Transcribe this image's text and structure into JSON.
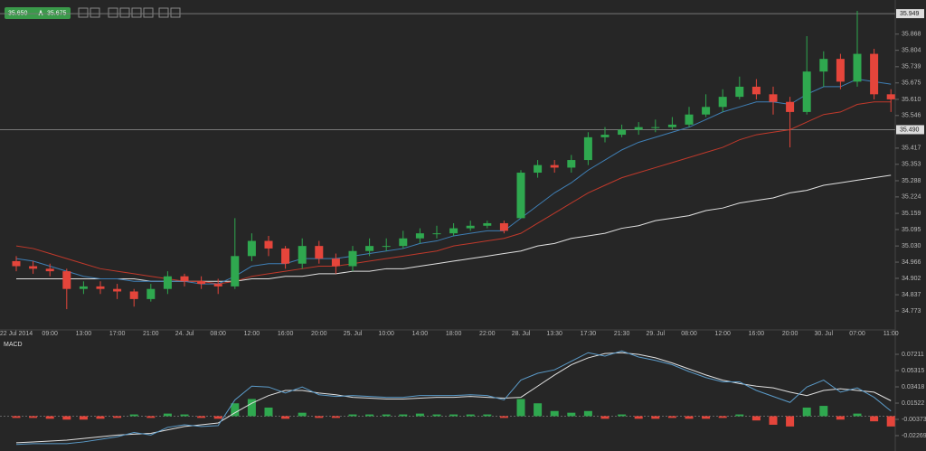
{
  "quote": {
    "bid": "35.650",
    "ask": "35.675"
  },
  "chart_data": [
    {
      "type": "candlestick",
      "categories": [
        "22 Jul 2014",
        null,
        "09:00",
        null,
        "13:00",
        null,
        "17:00",
        null,
        "21:00",
        null,
        "24. Jul",
        null,
        "08:00",
        null,
        "12:00",
        null,
        "16:00",
        null,
        "20:00",
        null,
        "25. Jul",
        null,
        "10:00",
        null,
        "14:00",
        null,
        "18:00",
        null,
        "22:00",
        null,
        "28. Jul",
        null,
        "13:30",
        null,
        "17:30",
        null,
        "21:30",
        null,
        "29. Jul",
        null,
        "08:00",
        null,
        "12:00",
        null,
        "16:00",
        null,
        "20:00",
        null,
        "30. Jul",
        null,
        "07:00",
        null,
        "11:00"
      ],
      "open": [
        34.97,
        34.95,
        34.94,
        34.93,
        34.86,
        34.87,
        34.86,
        34.85,
        34.82,
        34.86,
        34.91,
        34.89,
        34.88,
        34.87,
        34.99,
        35.05,
        35.02,
        34.96,
        35.03,
        34.98,
        34.95,
        35.01,
        35.03,
        35.03,
        35.06,
        35.08,
        35.08,
        35.1,
        35.11,
        35.12,
        35.14,
        35.32,
        35.35,
        35.34,
        35.37,
        35.46,
        35.47,
        35.49,
        35.5,
        35.5,
        35.51,
        35.55,
        35.58,
        35.62,
        35.66,
        35.63,
        35.6,
        35.56,
        35.72,
        35.77,
        35.68,
        35.79,
        35.63
      ],
      "high": [
        34.99,
        34.97,
        34.96,
        34.94,
        34.89,
        34.89,
        34.88,
        34.86,
        34.88,
        34.93,
        34.92,
        34.91,
        34.9,
        35.14,
        35.08,
        35.07,
        35.03,
        35.06,
        35.05,
        35.0,
        35.03,
        35.06,
        35.06,
        35.09,
        35.1,
        35.11,
        35.12,
        35.13,
        35.13,
        35.13,
        35.33,
        35.37,
        35.37,
        35.39,
        35.48,
        35.5,
        35.51,
        35.52,
        35.53,
        35.54,
        35.58,
        35.63,
        35.65,
        35.7,
        35.69,
        35.66,
        35.62,
        35.86,
        35.8,
        35.79,
        35.96,
        35.81,
        35.65
      ],
      "low": [
        34.93,
        34.92,
        34.91,
        34.78,
        34.84,
        34.84,
        34.82,
        34.79,
        34.81,
        34.84,
        34.87,
        34.86,
        34.84,
        34.86,
        34.97,
        34.99,
        34.94,
        34.94,
        34.96,
        34.92,
        34.93,
        34.99,
        35.01,
        35.02,
        35.04,
        35.06,
        35.07,
        35.09,
        35.1,
        35.08,
        35.14,
        35.3,
        35.32,
        35.32,
        35.35,
        35.44,
        35.46,
        35.47,
        35.48,
        35.49,
        35.5,
        35.54,
        35.56,
        35.61,
        35.61,
        35.55,
        35.42,
        35.55,
        35.66,
        35.65,
        35.66,
        35.61,
        35.56
      ],
      "close": [
        34.95,
        34.94,
        34.93,
        34.86,
        34.87,
        34.86,
        34.85,
        34.82,
        34.86,
        34.91,
        34.89,
        34.88,
        34.87,
        34.99,
        35.05,
        35.02,
        34.96,
        35.03,
        34.98,
        34.95,
        35.01,
        35.03,
        35.03,
        35.06,
        35.08,
        35.08,
        35.1,
        35.11,
        35.12,
        35.09,
        35.32,
        35.35,
        35.34,
        35.37,
        35.46,
        35.47,
        35.49,
        35.5,
        35.5,
        35.51,
        35.55,
        35.58,
        35.62,
        35.66,
        35.63,
        35.6,
        35.56,
        35.72,
        35.77,
        35.68,
        35.79,
        35.63,
        35.61
      ],
      "up_color": "#2fa84f",
      "down_color": "#e5453b",
      "lines": [
        {
          "color": "#e0e0e0",
          "values": [
            34.9,
            34.9,
            34.9,
            34.9,
            34.9,
            34.9,
            34.9,
            34.9,
            34.89,
            34.89,
            34.89,
            34.89,
            34.89,
            34.89,
            34.9,
            34.9,
            34.91,
            34.91,
            34.92,
            34.92,
            34.93,
            34.93,
            34.94,
            34.94,
            34.95,
            34.96,
            34.97,
            34.98,
            34.99,
            35.0,
            35.01,
            35.03,
            35.04,
            35.06,
            35.07,
            35.08,
            35.1,
            35.11,
            35.13,
            35.14,
            35.15,
            35.17,
            35.18,
            35.2,
            35.21,
            35.22,
            35.24,
            35.25,
            35.27,
            35.28,
            35.29,
            35.3,
            35.31
          ]
        },
        {
          "color": "#c0392b",
          "values": [
            35.03,
            35.02,
            35.0,
            34.98,
            34.96,
            34.94,
            34.93,
            34.92,
            34.91,
            34.9,
            34.89,
            34.89,
            34.88,
            34.89,
            34.91,
            34.92,
            34.93,
            34.94,
            34.95,
            34.95,
            34.96,
            34.97,
            34.98,
            34.99,
            35.0,
            35.01,
            35.03,
            35.04,
            35.05,
            35.06,
            35.08,
            35.12,
            35.16,
            35.2,
            35.24,
            35.27,
            35.3,
            35.32,
            35.34,
            35.36,
            35.38,
            35.4,
            35.42,
            35.45,
            35.47,
            35.48,
            35.49,
            35.52,
            35.55,
            35.56,
            35.59,
            35.6,
            35.6
          ]
        },
        {
          "color": "#3f7fb5",
          "values": [
            34.98,
            34.97,
            34.95,
            34.93,
            34.91,
            34.9,
            34.9,
            34.89,
            34.89,
            34.89,
            34.89,
            34.88,
            34.88,
            34.91,
            34.95,
            34.96,
            34.96,
            34.98,
            34.98,
            34.98,
            34.99,
            35.0,
            35.01,
            35.02,
            35.04,
            35.05,
            35.07,
            35.08,
            35.09,
            35.09,
            35.14,
            35.19,
            35.24,
            35.28,
            35.33,
            35.37,
            35.41,
            35.44,
            35.46,
            35.48,
            35.5,
            35.53,
            35.56,
            35.58,
            35.6,
            35.6,
            35.59,
            35.63,
            35.66,
            35.66,
            35.69,
            35.68,
            35.67
          ]
        }
      ],
      "ylim": [
        34.698,
        36.003
      ],
      "yticks": [
        {
          "value": 35.868,
          "label": "35.868"
        },
        {
          "value": 35.804,
          "label": "35.804"
        },
        {
          "value": 35.739,
          "label": "35.739"
        },
        {
          "value": 35.675,
          "label": "35.675"
        },
        {
          "value": 35.61,
          "label": "35.610"
        },
        {
          "value": 35.546,
          "label": "35.546"
        },
        {
          "value": 35.417,
          "label": "35.417"
        },
        {
          "value": 35.353,
          "label": "35.353"
        },
        {
          "value": 35.288,
          "label": "35.288"
        },
        {
          "value": 35.224,
          "label": "35.224"
        },
        {
          "value": 35.159,
          "label": "35.159"
        },
        {
          "value": 35.095,
          "label": "35.095"
        },
        {
          "value": 35.03,
          "label": "35.030"
        },
        {
          "value": 34.966,
          "label": "34.966"
        },
        {
          "value": 34.902,
          "label": "34.902"
        },
        {
          "value": 34.837,
          "label": "34.837"
        },
        {
          "value": 34.773,
          "label": "34.773"
        }
      ],
      "price_lines": [
        {
          "value": 35.949,
          "label": "35.949"
        },
        {
          "value": 35.49,
          "label": "35.490"
        }
      ]
    },
    {
      "type": "macd",
      "title": "MACD",
      "histogram": [
        -0.002,
        -0.002,
        -0.003,
        -0.004,
        -0.004,
        -0.003,
        -0.002,
        0.002,
        -0.002,
        0.003,
        0.002,
        -0.002,
        -0.003,
        0.015,
        0.02,
        0.01,
        -0.003,
        0.004,
        -0.002,
        -0.002,
        0.002,
        0.002,
        0.002,
        0.002,
        0.003,
        0.002,
        0.002,
        0.002,
        0.002,
        -0.002,
        0.02,
        0.015,
        0.006,
        0.004,
        0.006,
        -0.003,
        0.002,
        -0.003,
        -0.003,
        -0.002,
        -0.003,
        -0.003,
        -0.002,
        0.002,
        -0.005,
        -0.01,
        -0.012,
        0.01,
        0.012,
        -0.004,
        0.003,
        -0.006,
        -0.012
      ],
      "up_color": "#2fa84f",
      "down_color": "#e5453b",
      "lines": [
        {
          "color": "#e0e0e0",
          "values": [
            -0.031,
            -0.03,
            -0.029,
            -0.028,
            -0.026,
            -0.024,
            -0.022,
            -0.021,
            -0.02,
            -0.016,
            -0.012,
            -0.01,
            -0.008,
            0.004,
            0.015,
            0.024,
            0.03,
            0.03,
            0.027,
            0.025,
            0.022,
            0.021,
            0.02,
            0.02,
            0.021,
            0.022,
            0.022,
            0.023,
            0.022,
            0.021,
            0.022,
            0.035,
            0.048,
            0.06,
            0.068,
            0.073,
            0.074,
            0.072,
            0.068,
            0.062,
            0.055,
            0.048,
            0.042,
            0.038,
            0.035,
            0.033,
            0.028,
            0.024,
            0.03,
            0.032,
            0.03,
            0.028,
            0.018
          ]
        },
        {
          "color": "#5b9bc9",
          "values": [
            -0.033,
            -0.032,
            -0.032,
            -0.032,
            -0.03,
            -0.027,
            -0.024,
            -0.019,
            -0.022,
            -0.013,
            -0.01,
            -0.012,
            -0.011,
            0.019,
            0.035,
            0.034,
            0.027,
            0.034,
            0.025,
            0.023,
            0.024,
            0.023,
            0.022,
            0.022,
            0.024,
            0.024,
            0.024,
            0.025,
            0.024,
            0.019,
            0.042,
            0.05,
            0.054,
            0.064,
            0.074,
            0.07,
            0.076,
            0.069,
            0.065,
            0.06,
            0.052,
            0.045,
            0.04,
            0.04,
            0.03,
            0.023,
            0.016,
            0.034,
            0.042,
            0.028,
            0.033,
            0.022,
            0.006
          ]
        }
      ],
      "ylim": [
        -0.0406,
        0.0932
      ],
      "yticks": [
        0.07211,
        0.05315,
        0.03418,
        0.01522,
        -0.00373,
        -0.02269
      ]
    }
  ]
}
